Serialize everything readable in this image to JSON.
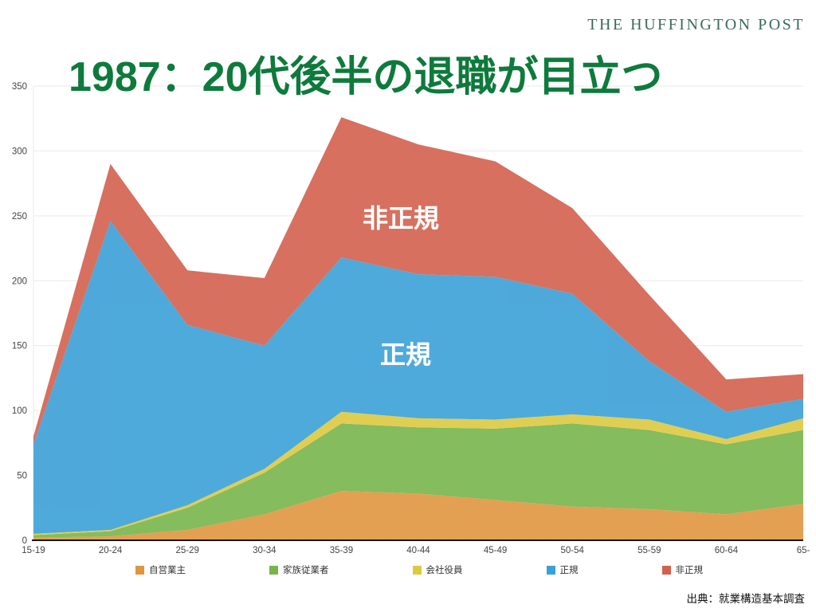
{
  "header": {
    "logo": "THE HUFFINGTON POST",
    "title": "1987：20代後半の退職が目立つ"
  },
  "area_labels": {
    "nonregular": "非正規",
    "regular": "正規"
  },
  "source": "出典：就業構造基本調査",
  "colors": {
    "title_green": "#0E7A3C",
    "logo_green": "#3A6A5C",
    "gridline": "#E9E9E9",
    "axis_line": "#161616",
    "tick_label": "#444444",
    "background": "#FFFFFF"
  },
  "chart_data": {
    "type": "area",
    "stacked": true,
    "title": "1987：20代後半の退職が目立つ",
    "xlabel": "",
    "ylabel": "",
    "ylim": [
      0,
      350
    ],
    "yticks": [
      0,
      50,
      100,
      150,
      200,
      250,
      300,
      350
    ],
    "grid": true,
    "legend_position": "bottom",
    "categories": [
      "15-19",
      "20-24",
      "25-29",
      "30-34",
      "35-39",
      "40-44",
      "45-49",
      "50-54",
      "55-59",
      "60-64",
      "65-"
    ],
    "series": [
      {
        "id": "self-employed",
        "name": "自営業主",
        "color": "#E0953F",
        "values": [
          2,
          3,
          8,
          20,
          38,
          36,
          31,
          26,
          24,
          20,
          28
        ]
      },
      {
        "id": "family-worker",
        "name": "家族従業者",
        "color": "#77B54A",
        "values": [
          2,
          4,
          17,
          32,
          52,
          51,
          55,
          64,
          61,
          54,
          57
        ]
      },
      {
        "id": "executive",
        "name": "会社役員",
        "color": "#DDC93F",
        "values": [
          1,
          1,
          2,
          3,
          9,
          7,
          7,
          7,
          8,
          4,
          9
        ]
      },
      {
        "id": "regular",
        "name": "正規",
        "color": "#3AA0D6",
        "values": [
          69,
          238,
          139,
          95,
          119,
          111,
          110,
          93,
          45,
          21,
          15
        ]
      },
      {
        "id": "nonregular",
        "name": "非正規",
        "color": "#D3604D",
        "values": [
          6,
          44,
          42,
          52,
          108,
          100,
          89,
          66,
          51,
          25,
          19
        ]
      }
    ],
    "cumulative_totals": [
      80,
      290,
      208,
      202,
      326,
      305,
      292,
      256,
      189,
      124,
      128
    ]
  }
}
